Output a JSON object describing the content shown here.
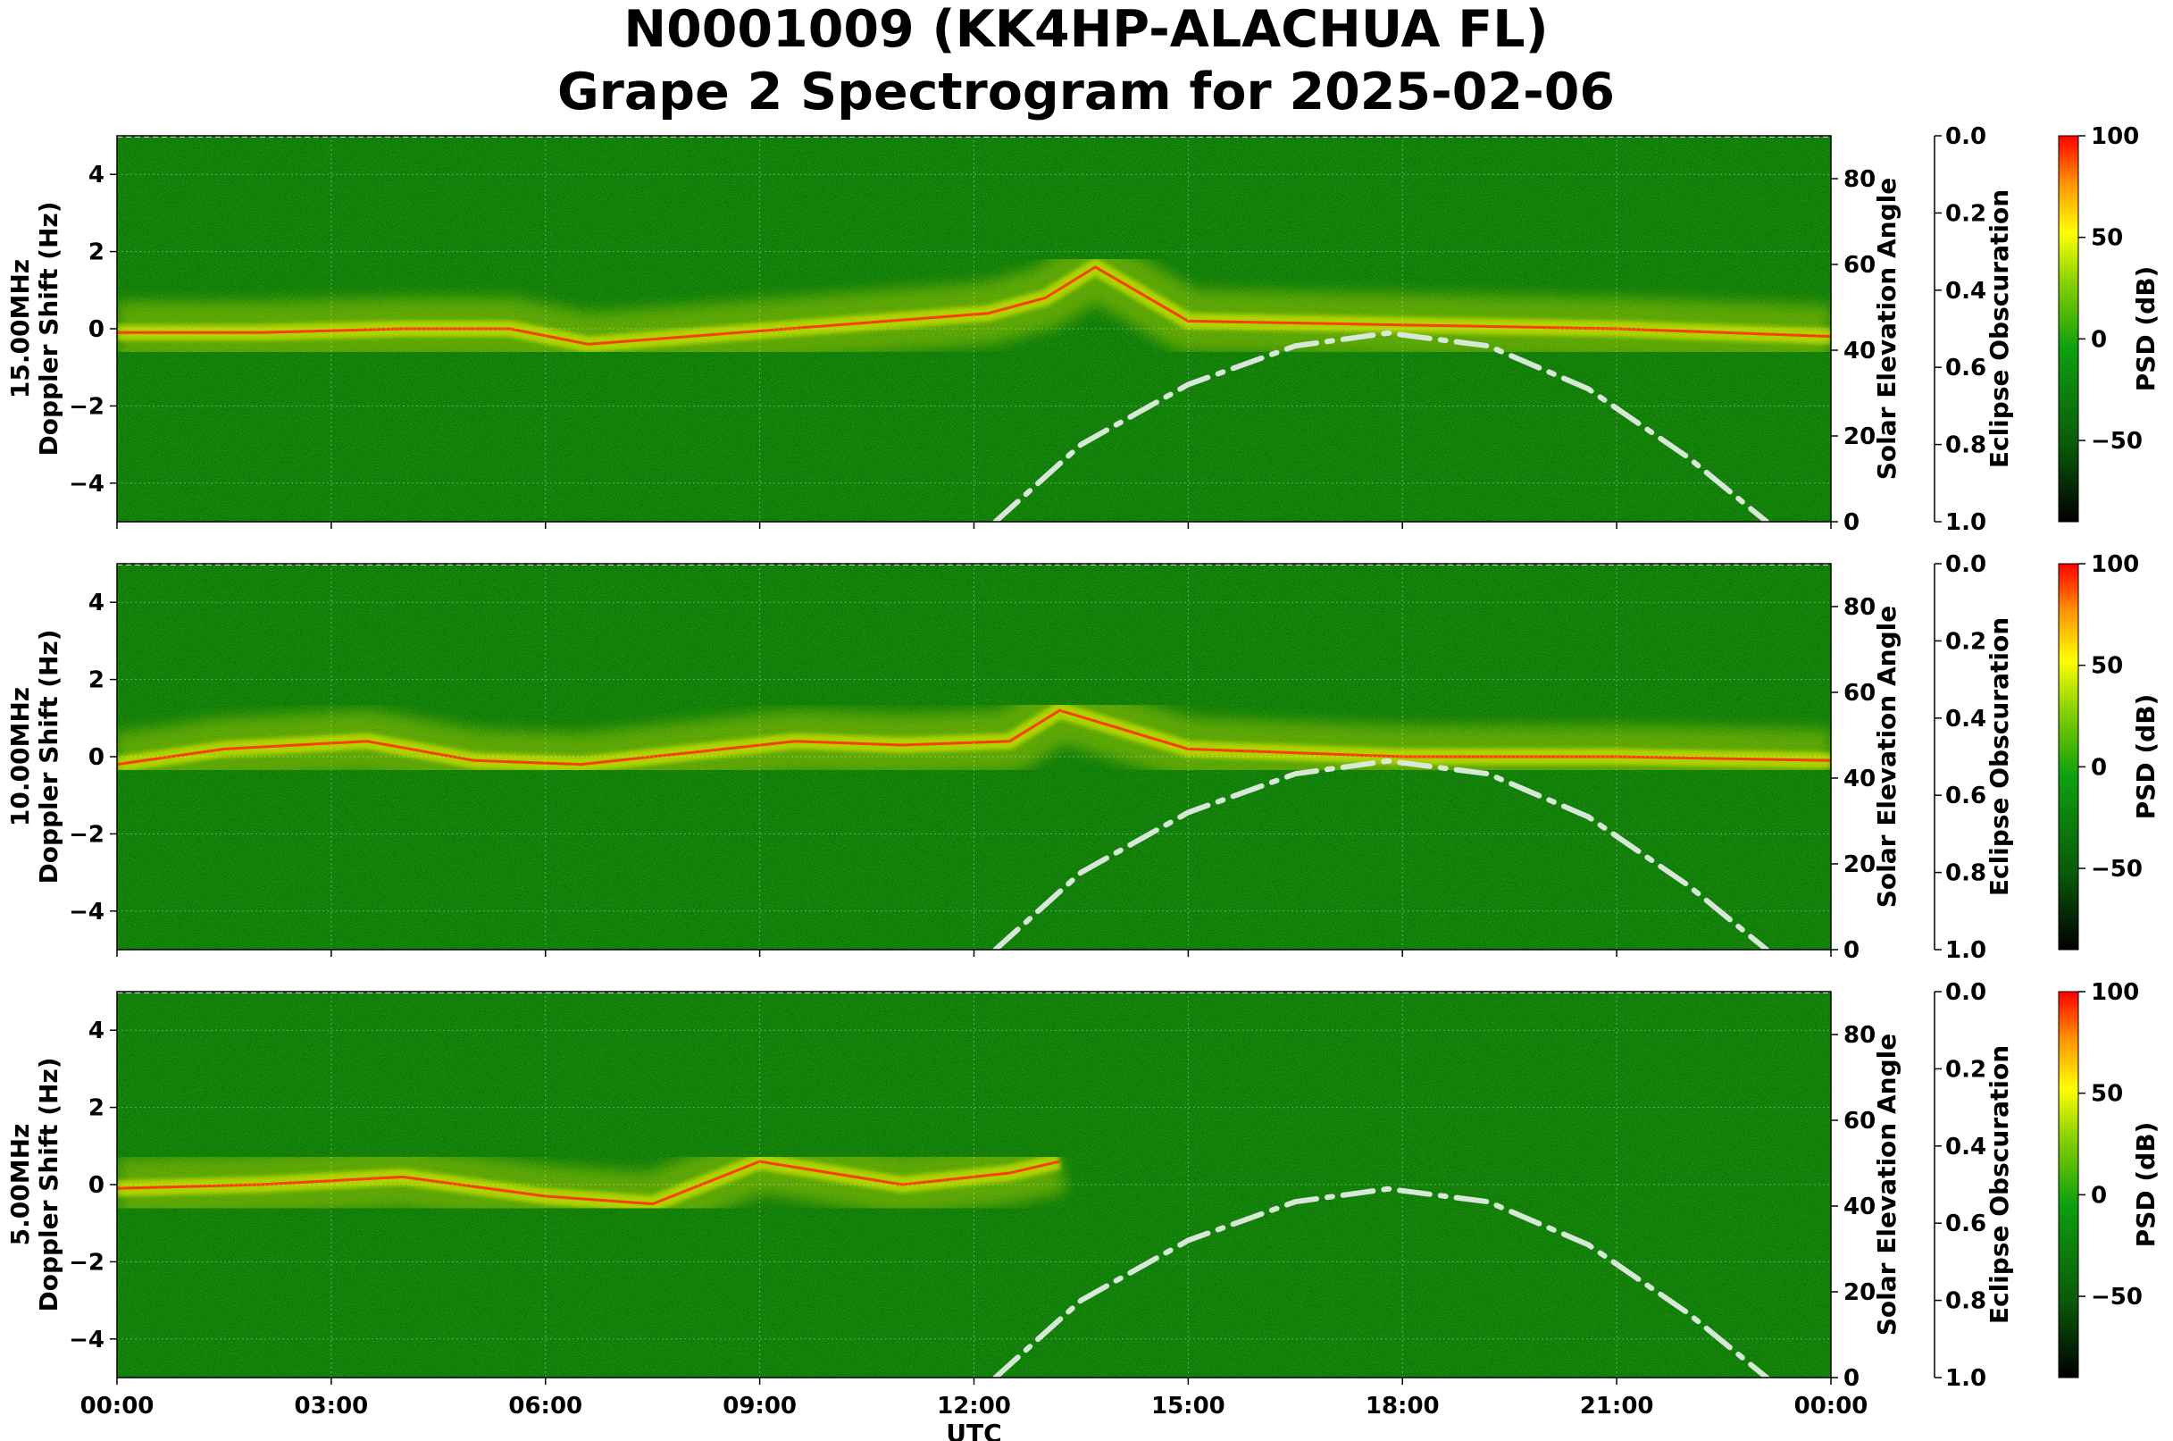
{
  "figure": {
    "title_line1": "N0001009 (KK4HP-ALACHUA FL)",
    "title_line2": "Grape 2 Spectrogram for 2025-02-06"
  },
  "colors": {
    "background_green": "#0a7a0a",
    "trace_yellow": "#e6f000",
    "trace_red": "#ff3000",
    "elevation_curve": "#d8e8d8",
    "colormap": [
      "#000000",
      "#0a6a0a",
      "#0ea00e",
      "#88d000",
      "#ffff00",
      "#ff9000",
      "#ff0000"
    ]
  },
  "chart_data": [
    {
      "type": "heatmap",
      "ylabel_line1": "15.00MHz",
      "ylabel_line2": "Doppler Shift (Hz)",
      "ylim": [
        -5,
        5
      ],
      "yticks": [
        "4",
        "2",
        "0",
        "−2",
        "−4"
      ],
      "xlim_hours": [
        0,
        24
      ],
      "right_axis": {
        "label": "Solar Elevation Angle",
        "ylim": [
          0,
          90
        ],
        "ticks": [
          "80",
          "60",
          "40",
          "20",
          "0"
        ]
      },
      "eclipse_axis": {
        "label": "Eclipse Obscuration",
        "ylim": [
          1.0,
          0.0
        ],
        "ticks": [
          "0.0",
          "0.2",
          "0.4",
          "0.6",
          "0.8",
          "1.0"
        ]
      },
      "colorbar": {
        "label": "PSD (dB)",
        "range": [
          -90,
          100
        ],
        "ticks": [
          "100",
          "50",
          "0",
          "−50"
        ]
      },
      "solar_elevation": {
        "hours": [
          12.3,
          13.5,
          15.0,
          16.5,
          17.8,
          19.2,
          20.6,
          22.0,
          23.1
        ],
        "degrees": [
          0,
          18,
          32,
          41,
          44,
          41,
          31,
          15,
          0
        ]
      },
      "signal_trace": {
        "hours": [
          0,
          2,
          4,
          5.5,
          6.6,
          12.2,
          13.0,
          13.7,
          15,
          18,
          21,
          24
        ],
        "doppler_hz": [
          -0.1,
          -0.1,
          0.0,
          0.0,
          -0.4,
          0.4,
          0.8,
          1.6,
          0.2,
          0.1,
          0.0,
          -0.2
        ]
      }
    },
    {
      "type": "heatmap",
      "ylabel_line1": "10.00MHz",
      "ylabel_line2": "Doppler Shift (Hz)",
      "ylim": [
        -5,
        5
      ],
      "yticks": [
        "4",
        "2",
        "0",
        "−2",
        "−4"
      ],
      "xlim_hours": [
        0,
        24
      ],
      "right_axis": {
        "label": "Solar Elevation Angle",
        "ylim": [
          0,
          90
        ],
        "ticks": [
          "80",
          "60",
          "40",
          "20",
          "0"
        ]
      },
      "eclipse_axis": {
        "label": "Eclipse Obscuration",
        "ylim": [
          1.0,
          0.0
        ],
        "ticks": [
          "0.0",
          "0.2",
          "0.4",
          "0.6",
          "0.8",
          "1.0"
        ]
      },
      "colorbar": {
        "label": "PSD (dB)",
        "range": [
          -90,
          100
        ],
        "ticks": [
          "100",
          "50",
          "0",
          "−50"
        ]
      },
      "solar_elevation": {
        "hours": [
          12.3,
          13.5,
          15.0,
          16.5,
          17.8,
          19.2,
          20.6,
          22.0,
          23.1
        ],
        "degrees": [
          0,
          18,
          32,
          41,
          44,
          41,
          31,
          15,
          0
        ]
      },
      "signal_trace": {
        "hours": [
          0,
          1.5,
          3.5,
          5,
          6.5,
          8,
          9.5,
          11,
          12.5,
          13.2,
          15,
          18,
          21,
          24
        ],
        "doppler_hz": [
          -0.2,
          0.2,
          0.4,
          -0.1,
          -0.2,
          0.1,
          0.4,
          0.3,
          0.4,
          1.2,
          0.2,
          0.0,
          0.0,
          -0.1
        ]
      }
    },
    {
      "type": "heatmap",
      "ylabel_line1": "5.00MHz",
      "ylabel_line2": "Doppler Shift (Hz)",
      "ylim": [
        -5,
        5
      ],
      "yticks": [
        "4",
        "2",
        "0",
        "−2",
        "−4"
      ],
      "xlim_hours": [
        0,
        24
      ],
      "xticks": [
        "00:00",
        "03:00",
        "06:00",
        "09:00",
        "12:00",
        "15:00",
        "18:00",
        "21:00",
        "00:00"
      ],
      "xlabel": "UTC",
      "right_axis": {
        "label": "Solar Elevation Angle",
        "ylim": [
          0,
          90
        ],
        "ticks": [
          "80",
          "60",
          "40",
          "20",
          "0"
        ]
      },
      "eclipse_axis": {
        "label": "Eclipse Obscuration",
        "ylim": [
          1.0,
          0.0
        ],
        "ticks": [
          "0.0",
          "0.2",
          "0.4",
          "0.6",
          "0.8",
          "1.0"
        ]
      },
      "colorbar": {
        "label": "PSD (dB)",
        "range": [
          -90,
          100
        ],
        "ticks": [
          "100",
          "50",
          "0",
          "−50"
        ]
      },
      "solar_elevation": {
        "hours": [
          12.3,
          13.5,
          15.0,
          16.5,
          17.8,
          19.2,
          20.6,
          22.0,
          23.1
        ],
        "degrees": [
          0,
          18,
          32,
          41,
          44,
          41,
          31,
          15,
          0
        ]
      },
      "signal_trace": {
        "hours": [
          0,
          2,
          4,
          6,
          7.5,
          9,
          11,
          12.5,
          13.2
        ],
        "doppler_hz": [
          -0.1,
          0.0,
          0.2,
          -0.3,
          -0.5,
          0.6,
          0.0,
          0.3,
          0.6
        ]
      }
    }
  ]
}
